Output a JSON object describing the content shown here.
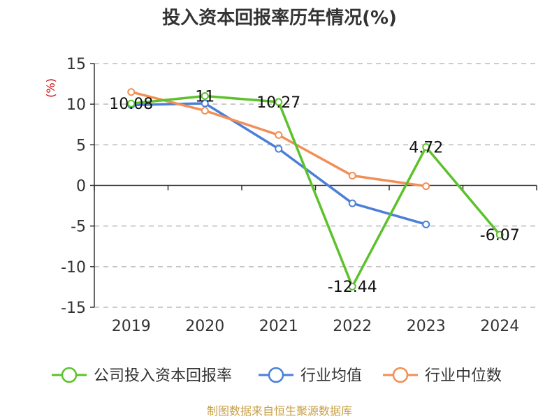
{
  "chart_data": {
    "type": "line",
    "title": "投入资本回报率历年情况(%)",
    "ylabel": "(%)",
    "categories": [
      "2019",
      "2020",
      "2021",
      "2022",
      "2023",
      "2024"
    ],
    "ylim": [
      -15,
      15
    ],
    "yticks": [
      15,
      10,
      5,
      0,
      -5,
      -10,
      -15
    ],
    "grid": true,
    "legend_position": "bottom",
    "series": [
      {
        "name": "公司投入资本回报率",
        "color": "#5cc22b",
        "values": [
          10.08,
          11,
          10.27,
          -12.44,
          4.72,
          -6.07
        ],
        "labels": [
          "10.08",
          "11",
          "10.27",
          "-12.44",
          "4.72",
          "-6.07"
        ]
      },
      {
        "name": "行业均值",
        "color": "#4a7fd8",
        "values": [
          9.9,
          10.1,
          4.5,
          -2.2,
          -4.8,
          null
        ]
      },
      {
        "name": "行业中位数",
        "color": "#f28f56",
        "values": [
          11.5,
          9.2,
          6.2,
          1.2,
          -0.1,
          null
        ]
      }
    ]
  },
  "source": "制图数据来自恒生聚源数据库",
  "colors": {
    "axis": "#333333",
    "grid": "#bbbbbb",
    "ylabel": "#cc0000",
    "source": "#c8a046"
  }
}
